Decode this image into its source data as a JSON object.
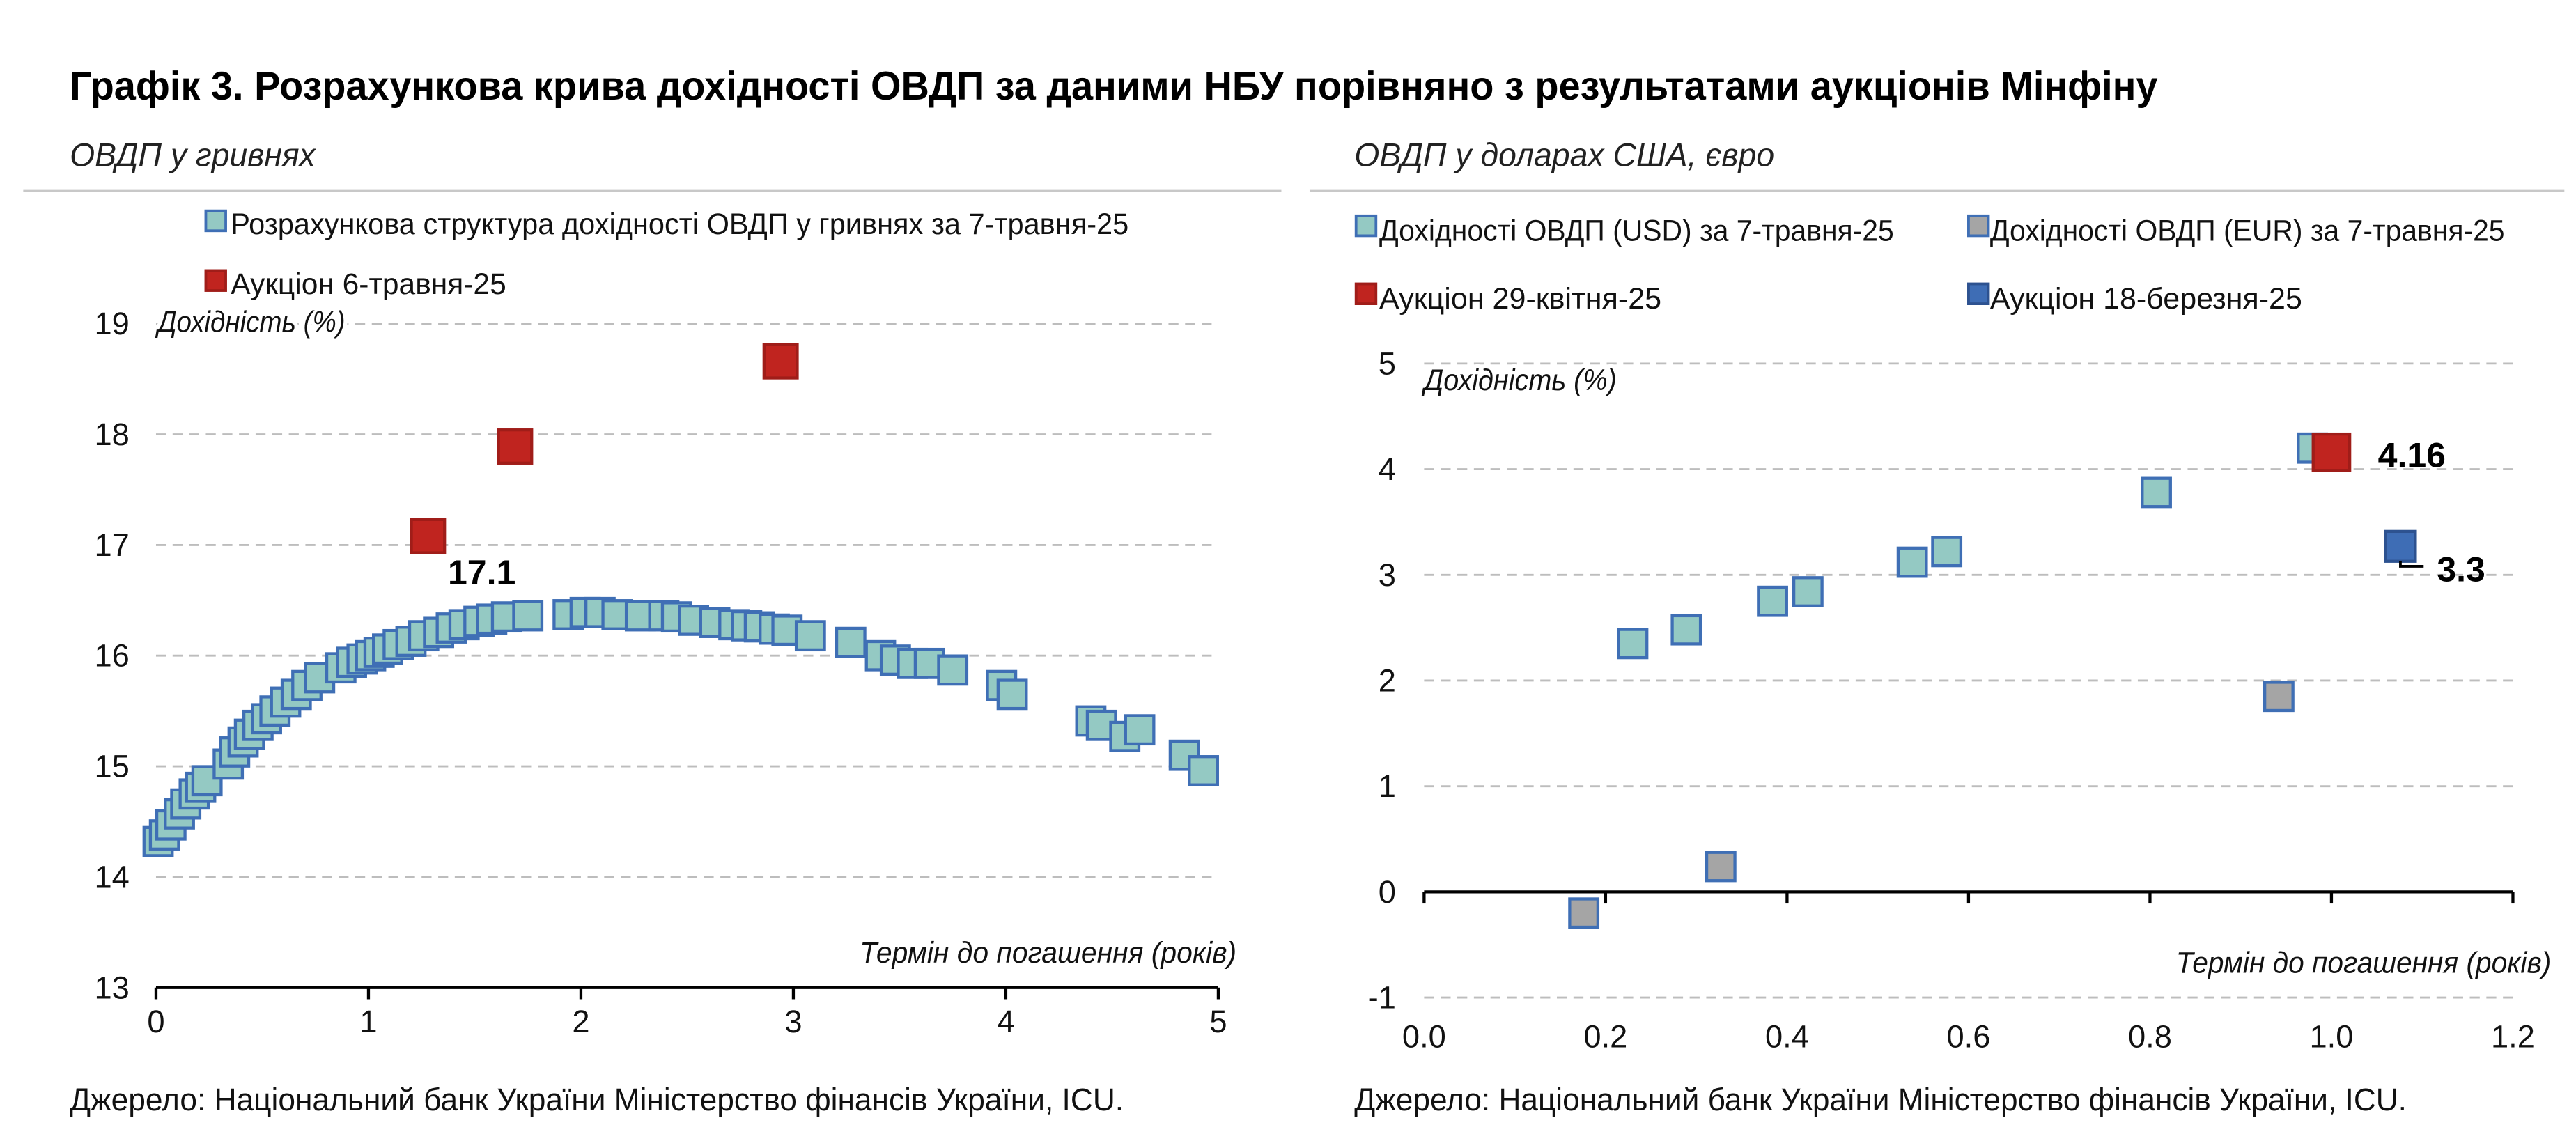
{
  "page": {
    "title": "Графік 3. Розрахункова крива дохідності ОВДП за даними НБУ порівняно з результатами аукціонів Мінфіну",
    "panels": [
      {
        "source": "Джерело: Національний банк України Міністерство фінансів України, ICU."
      },
      {
        "source": "Джерело: Національний банк України Міністерство фінансів України, ICU."
      }
    ]
  },
  "chart_data": [
    {
      "type": "scatter",
      "title": "ОВДП у гривнях",
      "xlabel": "Термін до погашення (років)",
      "ylabel": "Дохідність (%)",
      "xlim": [
        0,
        5
      ],
      "ylim": [
        13,
        19
      ],
      "xticks": [
        "0",
        "1",
        "2",
        "3",
        "4",
        "5"
      ],
      "yticks": [
        "13",
        "14",
        "15",
        "16",
        "17",
        "18",
        "19"
      ],
      "x_axis_at": 13,
      "grid": true,
      "legend_position": "top-left",
      "series": [
        {
          "name": "Розрахункова структура дохідності ОВДП у гривнях за 7-травня-25",
          "color": "#94c9c3",
          "border": "#3f6fb5",
          "points": [
            [
              0.01,
              14.32
            ],
            [
              0.04,
              14.38
            ],
            [
              0.07,
              14.47
            ],
            [
              0.11,
              14.57
            ],
            [
              0.14,
              14.66
            ],
            [
              0.18,
              14.75
            ],
            [
              0.21,
              14.81
            ],
            [
              0.24,
              14.87
            ],
            [
              0.34,
              15.02
            ],
            [
              0.37,
              15.13
            ],
            [
              0.41,
              15.22
            ],
            [
              0.44,
              15.29
            ],
            [
              0.48,
              15.37
            ],
            [
              0.52,
              15.43
            ],
            [
              0.56,
              15.5
            ],
            [
              0.61,
              15.58
            ],
            [
              0.66,
              15.65
            ],
            [
              0.71,
              15.73
            ],
            [
              0.77,
              15.8
            ],
            [
              0.87,
              15.89
            ],
            [
              0.92,
              15.94
            ],
            [
              0.97,
              15.97
            ],
            [
              1.01,
              16.0
            ],
            [
              1.05,
              16.03
            ],
            [
              1.09,
              16.06
            ],
            [
              1.14,
              16.1
            ],
            [
              1.2,
              16.13
            ],
            [
              1.26,
              16.18
            ],
            [
              1.33,
              16.21
            ],
            [
              1.39,
              16.25
            ],
            [
              1.45,
              16.28
            ],
            [
              1.52,
              16.31
            ],
            [
              1.58,
              16.33
            ],
            [
              1.65,
              16.35
            ],
            [
              1.75,
              16.36
            ],
            [
              1.94,
              16.37
            ],
            [
              2.02,
              16.39
            ],
            [
              2.09,
              16.39
            ],
            [
              2.17,
              16.37
            ],
            [
              2.28,
              16.36
            ],
            [
              2.39,
              16.36
            ],
            [
              2.45,
              16.35
            ],
            [
              2.53,
              16.32
            ],
            [
              2.63,
              16.3
            ],
            [
              2.72,
              16.28
            ],
            [
              2.78,
              16.27
            ],
            [
              2.84,
              16.26
            ],
            [
              2.91,
              16.24
            ],
            [
              2.97,
              16.23
            ],
            [
              3.08,
              16.18
            ],
            [
              3.27,
              16.12
            ],
            [
              3.41,
              16.0
            ],
            [
              3.48,
              15.96
            ],
            [
              3.56,
              15.93
            ],
            [
              3.64,
              15.93
            ],
            [
              3.75,
              15.87
            ],
            [
              3.98,
              15.73
            ],
            [
              4.03,
              15.65
            ],
            [
              4.4,
              15.41
            ],
            [
              4.45,
              15.37
            ],
            [
              4.56,
              15.27
            ],
            [
              4.63,
              15.33
            ],
            [
              4.84,
              15.1
            ],
            [
              4.93,
              14.96
            ]
          ]
        },
        {
          "name": "Аукціон 6-травня-25",
          "color": "#c0241f",
          "border": "#a01d19",
          "points": [
            [
              1.28,
              17.08
            ],
            [
              1.69,
              17.89
            ],
            [
              2.94,
              18.66
            ]
          ]
        }
      ],
      "data_labels": [
        {
          "series": 1,
          "point": 0,
          "text": "17.1"
        }
      ]
    },
    {
      "type": "scatter",
      "title": "ОВДП у доларах США, євро",
      "xlabel": "Термін до погашення (років)",
      "ylabel": "Дохідність (%)",
      "xlim": [
        0,
        1.2
      ],
      "ylim": [
        -1,
        5
      ],
      "xticks": [
        "0.0",
        "0.2",
        "0.4",
        "0.6",
        "0.8",
        "1.0",
        "1.2"
      ],
      "yticks": [
        "-1",
        "0",
        "1",
        "2",
        "3",
        "4",
        "5"
      ],
      "x_axis_at": 0,
      "grid": true,
      "legend_position": "top",
      "series": [
        {
          "name": "Дохідності ОВДП (USD) за 7-травня-25",
          "color": "#94c9c3",
          "border": "#3f6fb5",
          "points": [
            [
              0.23,
              2.35
            ],
            [
              0.289,
              2.48
            ],
            [
              0.384,
              2.75
            ],
            [
              0.423,
              2.84
            ],
            [
              0.538,
              3.12
            ],
            [
              0.576,
              3.22
            ],
            [
              0.807,
              3.78
            ],
            [
              0.979,
              4.2
            ]
          ]
        },
        {
          "name": "Дохідності ОВДП (EUR) за 7-травня-25",
          "color": "#a5a5a5",
          "border": "#3f6fb5",
          "points": [
            [
              0.176,
              -0.2
            ],
            [
              0.327,
              0.24
            ],
            [
              0.942,
              1.85
            ]
          ]
        },
        {
          "name": "Аукціон 29-квітня-25",
          "color": "#c0241f",
          "border": "#a01d19",
          "points": [
            [
              1.0,
              4.16
            ]
          ]
        },
        {
          "name": "Аукціон 18-березня-25",
          "color": "#3e6db5",
          "border": "#2d5290",
          "points": [
            [
              1.076,
              3.27
            ]
          ]
        }
      ],
      "data_labels": [
        {
          "series": 2,
          "point": 0,
          "text": "4.16"
        },
        {
          "series": 3,
          "point": 0,
          "text": "3.3"
        }
      ]
    }
  ]
}
